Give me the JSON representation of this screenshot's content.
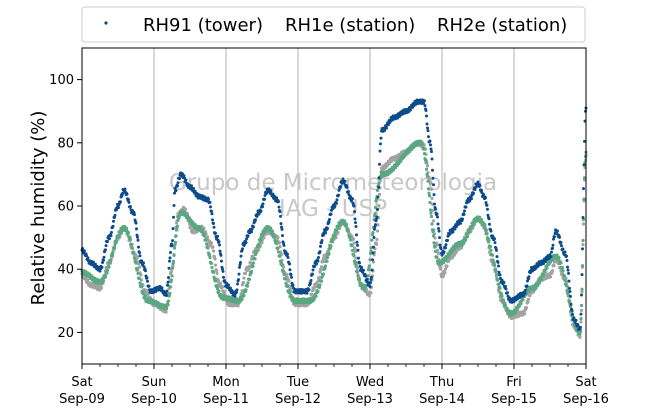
{
  "chart_data": {
    "type": "scatter",
    "title": "",
    "xlabel": "",
    "ylabel": "Relative humidity (%)",
    "ylim": [
      10,
      110
    ],
    "xlim": [
      "2017-09-09 00:00",
      "2017-09-16 00:00"
    ],
    "grid": "vertical lines at day boundaries",
    "legend_position": "top",
    "yticks": [
      20,
      40,
      60,
      80,
      100
    ],
    "xticks": [
      {
        "day": "Sat",
        "date": "Sep-09"
      },
      {
        "day": "Sun",
        "date": "Sep-10"
      },
      {
        "day": "Mon",
        "date": "Sep-11"
      },
      {
        "day": "Tue",
        "date": "Sep-12"
      },
      {
        "day": "Wed",
        "date": "Sep-13"
      },
      {
        "day": "Thu",
        "date": "Sep-14"
      },
      {
        "day": "Fri",
        "date": "Sep-15"
      },
      {
        "day": "Sat",
        "date": "Sep-16"
      }
    ],
    "watermark": [
      "Grupo de Micrometeorologia",
      "IAG - USP"
    ],
    "series": [
      {
        "name": "RH91 (tower)",
        "color": "#0d4c8c",
        "points": [
          [
            "2017-09-09 00:00",
            46
          ],
          [
            "2017-09-09 03:00",
            42
          ],
          [
            "2017-09-09 06:00",
            40
          ],
          [
            "2017-09-09 09:00",
            50
          ],
          [
            "2017-09-09 12:00",
            60
          ],
          [
            "2017-09-09 14:00",
            65
          ],
          [
            "2017-09-09 17:00",
            58
          ],
          [
            "2017-09-09 20:00",
            42
          ],
          [
            "2017-09-09 23:00",
            33
          ],
          [
            "2017-09-10 02:00",
            34
          ],
          [
            "2017-09-10 04:00",
            32
          ],
          [
            "2017-09-10 06:00",
            48
          ],
          [
            "2017-09-10 07:00",
            65
          ],
          [
            "2017-09-10 09:00",
            70
          ],
          [
            "2017-09-10 12:00",
            66
          ],
          [
            "2017-09-10 15:00",
            63
          ],
          [
            "2017-09-10 18:00",
            62
          ],
          [
            "2017-09-10 21:00",
            50
          ],
          [
            "2017-09-11 00:00",
            35
          ],
          [
            "2017-09-11 03:00",
            32
          ],
          [
            "2017-09-11 06:00",
            48
          ],
          [
            "2017-09-11 08:00",
            52
          ],
          [
            "2017-09-11 11:00",
            58
          ],
          [
            "2017-09-11 14:00",
            65
          ],
          [
            "2017-09-11 17:00",
            62
          ],
          [
            "2017-09-11 20:00",
            45
          ],
          [
            "2017-09-11 23:00",
            33
          ],
          [
            "2017-09-12 03:00",
            33
          ],
          [
            "2017-09-12 06:00",
            42
          ],
          [
            "2017-09-12 09:00",
            52
          ],
          [
            "2017-09-12 12:00",
            60
          ],
          [
            "2017-09-12 15:00",
            68
          ],
          [
            "2017-09-12 18:00",
            62
          ],
          [
            "2017-09-12 21:00",
            40
          ],
          [
            "2017-09-13 00:00",
            35
          ],
          [
            "2017-09-13 02:00",
            55
          ],
          [
            "2017-09-13 04:00",
            84
          ],
          [
            "2017-09-13 08:00",
            88
          ],
          [
            "2017-09-13 12:00",
            90
          ],
          [
            "2017-09-13 16:00",
            93
          ],
          [
            "2017-09-13 18:00",
            93
          ],
          [
            "2017-09-13 20:00",
            80
          ],
          [
            "2017-09-13 22:00",
            58
          ],
          [
            "2017-09-14 00:00",
            45
          ],
          [
            "2017-09-14 03:00",
            52
          ],
          [
            "2017-09-14 06:00",
            55
          ],
          [
            "2017-09-14 09:00",
            62
          ],
          [
            "2017-09-14 12:00",
            67
          ],
          [
            "2017-09-14 14:00",
            63
          ],
          [
            "2017-09-14 17:00",
            50
          ],
          [
            "2017-09-14 20:00",
            36
          ],
          [
            "2017-09-14 23:00",
            30
          ],
          [
            "2017-09-15 03:00",
            32
          ],
          [
            "2017-09-15 06:00",
            40
          ],
          [
            "2017-09-15 09:00",
            42
          ],
          [
            "2017-09-15 12:00",
            44
          ],
          [
            "2017-09-15 14:00",
            52
          ],
          [
            "2017-09-15 17:00",
            45
          ],
          [
            "2017-09-15 20:00",
            24
          ],
          [
            "2017-09-15 22:00",
            21
          ],
          [
            "2017-09-16 00:00",
            91
          ]
        ]
      },
      {
        "name": "RH1e (station)",
        "color": "#5aa882",
        "points": [
          [
            "2017-09-09 00:00",
            39
          ],
          [
            "2017-09-09 06:00",
            36
          ],
          [
            "2017-09-09 14:00",
            53
          ],
          [
            "2017-09-09 22:00",
            30
          ],
          [
            "2017-09-10 04:00",
            28
          ],
          [
            "2017-09-10 09:00",
            58
          ],
          [
            "2017-09-10 15:00",
            53
          ],
          [
            "2017-09-10 23:00",
            31
          ],
          [
            "2017-09-11 04:00",
            30
          ],
          [
            "2017-09-11 14:00",
            53
          ],
          [
            "2017-09-11 23:00",
            30
          ],
          [
            "2017-09-12 04:00",
            30
          ],
          [
            "2017-09-12 15:00",
            55
          ],
          [
            "2017-09-12 22:00",
            34
          ],
          [
            "2017-09-13 04:00",
            70
          ],
          [
            "2017-09-13 17:00",
            80
          ],
          [
            "2017-09-13 23:00",
            42
          ],
          [
            "2017-09-14 06:00",
            48
          ],
          [
            "2017-09-14 12:00",
            56
          ],
          [
            "2017-09-14 23:00",
            26
          ],
          [
            "2017-09-15 06:00",
            34
          ],
          [
            "2017-09-15 14:00",
            44
          ],
          [
            "2017-09-15 22:00",
            20
          ],
          [
            "2017-09-16 00:00",
            77
          ]
        ]
      },
      {
        "name": "RH2e (station)",
        "color": "#a3a3a3",
        "points": [
          [
            "2017-09-09 00:00",
            38
          ],
          [
            "2017-09-09 03:00",
            35
          ],
          [
            "2017-09-09 06:00",
            34
          ],
          [
            "2017-09-09 09:00",
            42
          ],
          [
            "2017-09-09 12:00",
            50
          ],
          [
            "2017-09-09 14:00",
            53
          ],
          [
            "2017-09-09 18:00",
            44
          ],
          [
            "2017-09-09 21:00",
            33
          ],
          [
            "2017-09-10 00:00",
            29
          ],
          [
            "2017-09-10 04:00",
            27
          ],
          [
            "2017-09-10 06:00",
            40
          ],
          [
            "2017-09-10 08:00",
            57
          ],
          [
            "2017-09-10 10:00",
            59
          ],
          [
            "2017-09-10 13:00",
            52
          ],
          [
            "2017-09-10 16:00",
            53
          ],
          [
            "2017-09-10 19:00",
            48
          ],
          [
            "2017-09-10 22:00",
            35
          ],
          [
            "2017-09-11 01:00",
            29
          ],
          [
            "2017-09-11 04:00",
            29
          ],
          [
            "2017-09-11 07:00",
            40
          ],
          [
            "2017-09-11 10:00",
            46
          ],
          [
            "2017-09-11 14:00",
            52
          ],
          [
            "2017-09-11 17:00",
            50
          ],
          [
            "2017-09-11 20:00",
            38
          ],
          [
            "2017-09-11 23:00",
            29
          ],
          [
            "2017-09-12 03:00",
            29
          ],
          [
            "2017-09-12 06:00",
            35
          ],
          [
            "2017-09-12 09:00",
            44
          ],
          [
            "2017-09-12 12:00",
            50
          ],
          [
            "2017-09-12 15:00",
            55
          ],
          [
            "2017-09-12 18:00",
            50
          ],
          [
            "2017-09-12 21:00",
            35
          ],
          [
            "2017-09-13 00:00",
            32
          ],
          [
            "2017-09-13 02:00",
            48
          ],
          [
            "2017-09-13 04:00",
            72
          ],
          [
            "2017-09-13 08:00",
            75
          ],
          [
            "2017-09-13 12:00",
            77
          ],
          [
            "2017-09-13 16:00",
            80
          ],
          [
            "2017-09-13 18:00",
            79
          ],
          [
            "2017-09-13 20:00",
            68
          ],
          [
            "2017-09-13 22:00",
            48
          ],
          [
            "2017-09-14 00:00",
            38
          ],
          [
            "2017-09-14 03:00",
            44
          ],
          [
            "2017-09-14 06:00",
            47
          ],
          [
            "2017-09-14 09:00",
            52
          ],
          [
            "2017-09-14 12:00",
            56
          ],
          [
            "2017-09-14 14:00",
            54
          ],
          [
            "2017-09-14 17:00",
            42
          ],
          [
            "2017-09-14 20:00",
            30
          ],
          [
            "2017-09-14 23:00",
            25
          ],
          [
            "2017-09-15 03:00",
            26
          ],
          [
            "2017-09-15 06:00",
            33
          ],
          [
            "2017-09-15 09:00",
            37
          ],
          [
            "2017-09-15 12:00",
            38
          ],
          [
            "2017-09-15 14:00",
            43
          ],
          [
            "2017-09-15 17:00",
            37
          ],
          [
            "2017-09-15 20:00",
            22
          ],
          [
            "2017-09-15 22:00",
            19
          ],
          [
            "2017-09-16 00:00",
            76
          ]
        ]
      }
    ]
  }
}
